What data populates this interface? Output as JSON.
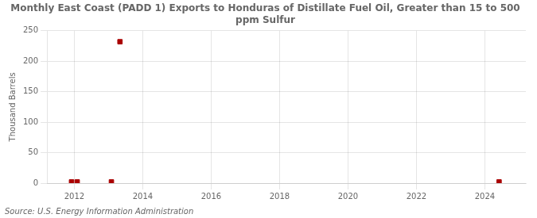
{
  "chart_data": {
    "type": "scatter",
    "title": "Monthly East Coast (PADD 1) Exports to Honduras of Distillate Fuel Oil, Greater than 15 to 500\nppm Sulfur",
    "ylabel": "Thousand Barrels",
    "annotation": "Source: U.S. Energy Information Administration",
    "x": [
      2011.917,
      2012.083,
      2013.083,
      2013.333,
      2024.417
    ],
    "values": [
      2,
      2,
      2,
      232,
      2
    ],
    "color": "#aa0000",
    "marker": "square",
    "xlim": [
      2011.2,
      2025.2
    ],
    "xticks": [
      2012,
      2014,
      2016,
      2018,
      2020,
      2022,
      2024
    ],
    "ylim": [
      0,
      250
    ],
    "yticks": [
      0,
      50,
      100,
      150,
      200,
      250
    ],
    "grid": true
  }
}
